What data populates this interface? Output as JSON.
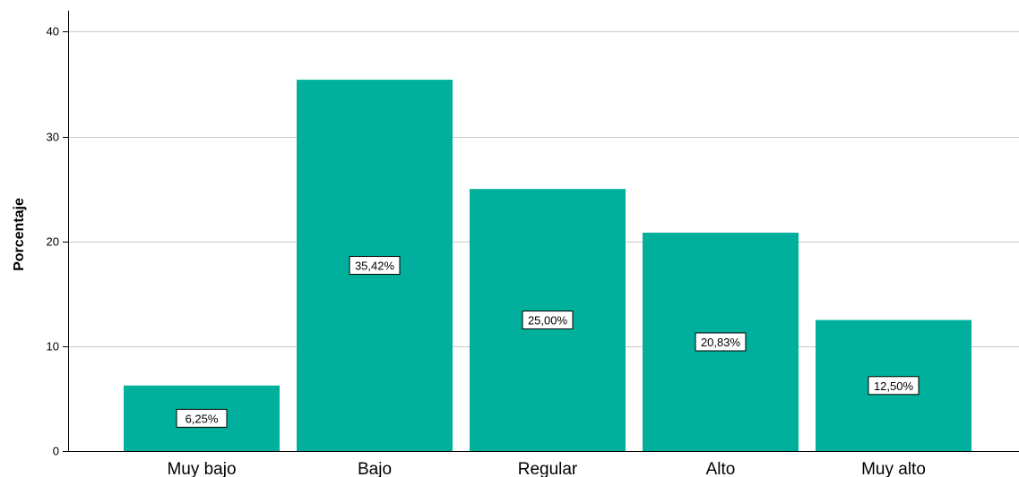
{
  "chart_data": {
    "type": "bar",
    "categories": [
      "Muy bajo",
      "Bajo",
      "Regular",
      "Alto",
      "Muy alto"
    ],
    "values": [
      6.25,
      35.42,
      25.0,
      20.83,
      12.5
    ],
    "data_labels": [
      "6,25%",
      "35,42%",
      "25,00%",
      "20,83%",
      "12,50%"
    ],
    "ylabel": "Porcentaje",
    "xlabel": "",
    "ylim": [
      0,
      42
    ],
    "yticks": [
      0,
      10,
      20,
      30,
      40
    ],
    "grid": true,
    "bar_color": "#00b09c"
  }
}
